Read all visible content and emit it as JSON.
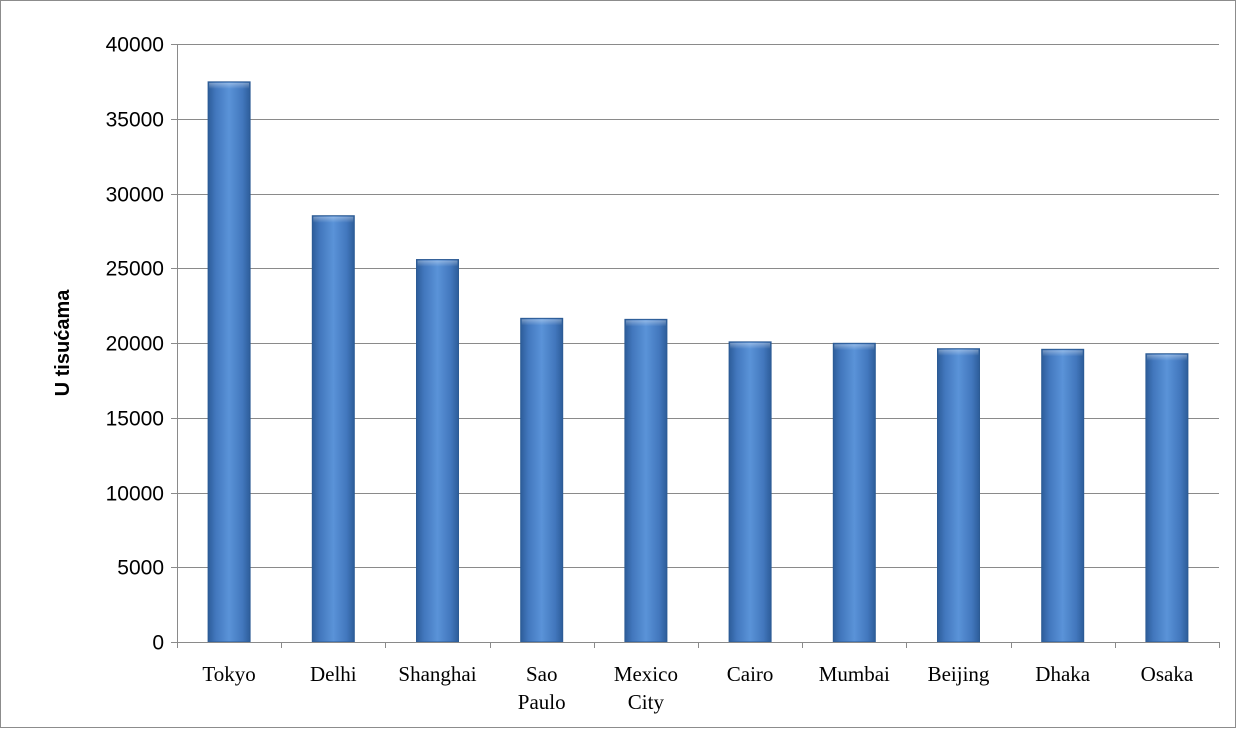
{
  "chart_data": {
    "type": "bar",
    "title": "",
    "xlabel": "",
    "ylabel": "U tisućama",
    "categories": [
      "Tokyo",
      "Delhi",
      "Shanghai",
      "Sao Paulo",
      "Mexico City",
      "Cairo",
      "Mumbai",
      "Beijing",
      "Dhaka",
      "Osaka"
    ],
    "category_lines": [
      [
        "Tokyo"
      ],
      [
        "Delhi"
      ],
      [
        "Shanghai"
      ],
      [
        "Sao",
        "Paulo"
      ],
      [
        "Mexico",
        "City"
      ],
      [
        "Cairo"
      ],
      [
        "Mumbai"
      ],
      [
        "Beijing"
      ],
      [
        "Dhaka"
      ],
      [
        "Osaka"
      ]
    ],
    "series": [
      {
        "values": [
          37468,
          28514,
          25582,
          21650,
          21581,
          20076,
          19980,
          19618,
          19578,
          19281
        ]
      }
    ],
    "ylim": [
      0,
      40000
    ],
    "yticks": [
      "0",
      "5000",
      "10000",
      "15000",
      "20000",
      "25000",
      "30000",
      "35000",
      "40000"
    ],
    "grid": true,
    "legend": "none",
    "bar_color": "#4a7ec3"
  }
}
